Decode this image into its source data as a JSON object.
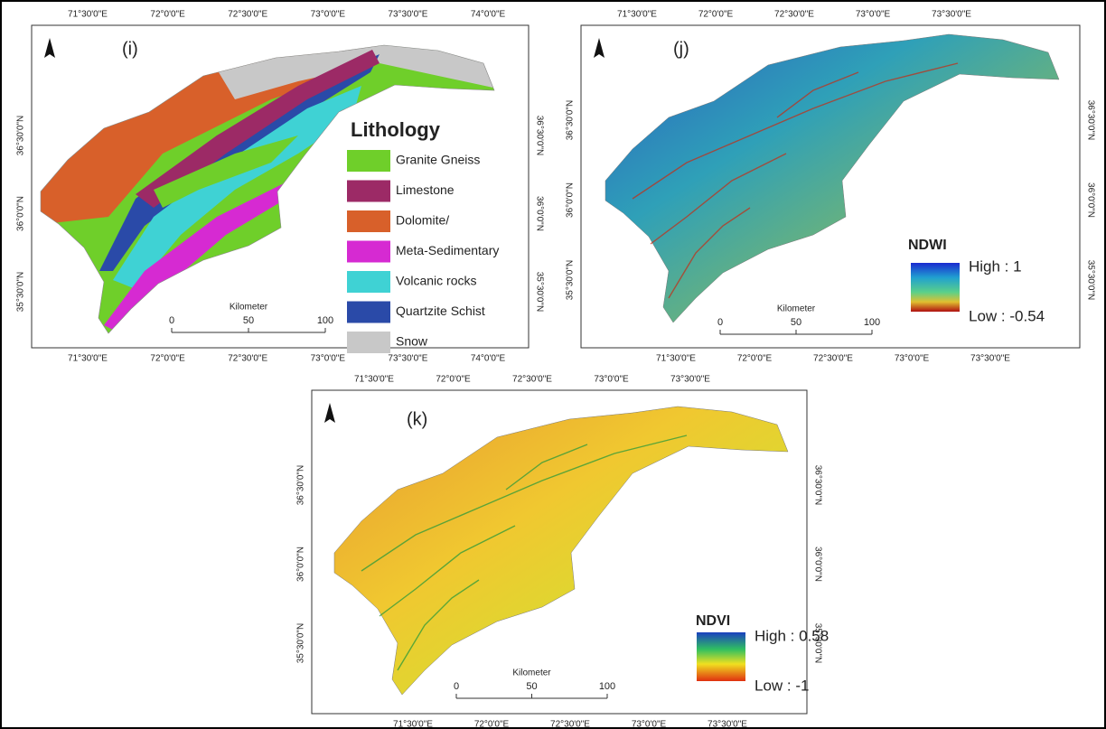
{
  "panels": [
    {
      "label": "(i)",
      "top_ticks": [
        "71°30'0\"E",
        "72°0'0\"E",
        "72°30'0\"E",
        "73°0'0\"E",
        "73°30'0\"E",
        "74°0'0\"E"
      ],
      "bottom_ticks": [
        "71°30'0\"E",
        "72°0'0\"E",
        "72°30'0\"E",
        "73°0'0\"E",
        "73°30'0\"E",
        "74°0'0\"E"
      ],
      "left_ticks": [
        "36°30'0\"N",
        "36°0'0\"N",
        "35°30'0\"N"
      ],
      "right_ticks": [
        "36°30'0\"N",
        "36°0'0\"N",
        "35°30'0\"N"
      ],
      "scale_bar": {
        "unit": "Kilometer",
        "ticks": [
          "0",
          "50",
          "100"
        ]
      },
      "legend": {
        "title": "Lithology",
        "items": [
          {
            "name": "Granite Gneiss",
            "color": "#6fcf2a"
          },
          {
            "name": "Limestone",
            "color": "#9c2a66"
          },
          {
            "name": "Dolomite/",
            "color": "#d8602a"
          },
          {
            "name": "Meta-Sedimentary",
            "color": "#d62ad2"
          },
          {
            "name": "Volcanic rocks",
            "color": "#3fd2d4"
          },
          {
            "name": "Quartzite Schist",
            "color": "#2a4aa8"
          },
          {
            "name": "Snow",
            "color": "#c8c8c8"
          }
        ]
      }
    },
    {
      "label": "(j)",
      "top_ticks": [
        "71°30'0\"E",
        "72°0'0\"E",
        "72°30'0\"E",
        "73°0'0\"E",
        "73°30'0\"E"
      ],
      "bottom_ticks": [
        "71°30'0\"E",
        "72°0'0\"E",
        "72°30'0\"E",
        "73°0'0\"E",
        "73°30'0\"E"
      ],
      "left_ticks": [
        "36°30'0\"N",
        "36°0'0\"N",
        "35°30'0\"N"
      ],
      "right_ticks": [
        "36°30'0\"N",
        "36°0'0\"N",
        "35°30'0\"N"
      ],
      "scale_bar": {
        "unit": "Kilometer",
        "ticks": [
          "0",
          "50",
          "100"
        ]
      },
      "legend": {
        "title": "NDWI",
        "high": "High : 1",
        "low": "Low : -0.54"
      }
    },
    {
      "label": "(k)",
      "top_ticks": [
        "71°30'0\"E",
        "72°0'0\"E",
        "72°30'0\"E",
        "73°0'0\"E",
        "73°30'0\"E"
      ],
      "bottom_ticks": [
        "71°30'0\"E",
        "72°0'0\"E",
        "72°30'0\"E",
        "73°0'0\"E",
        "73°30'0\"E"
      ],
      "left_ticks": [
        "36°30'0\"N",
        "36°0'0\"N",
        "35°30'0\"N"
      ],
      "right_ticks": [
        "36°30'0\"N",
        "36°0'0\"N",
        "35°30'0\"N"
      ],
      "scale_bar": {
        "unit": "Kilometer",
        "ticks": [
          "0",
          "50",
          "100"
        ]
      },
      "legend": {
        "title": "NDVI",
        "high": "High : 0.58",
        "low": "Low : -1"
      }
    }
  ]
}
